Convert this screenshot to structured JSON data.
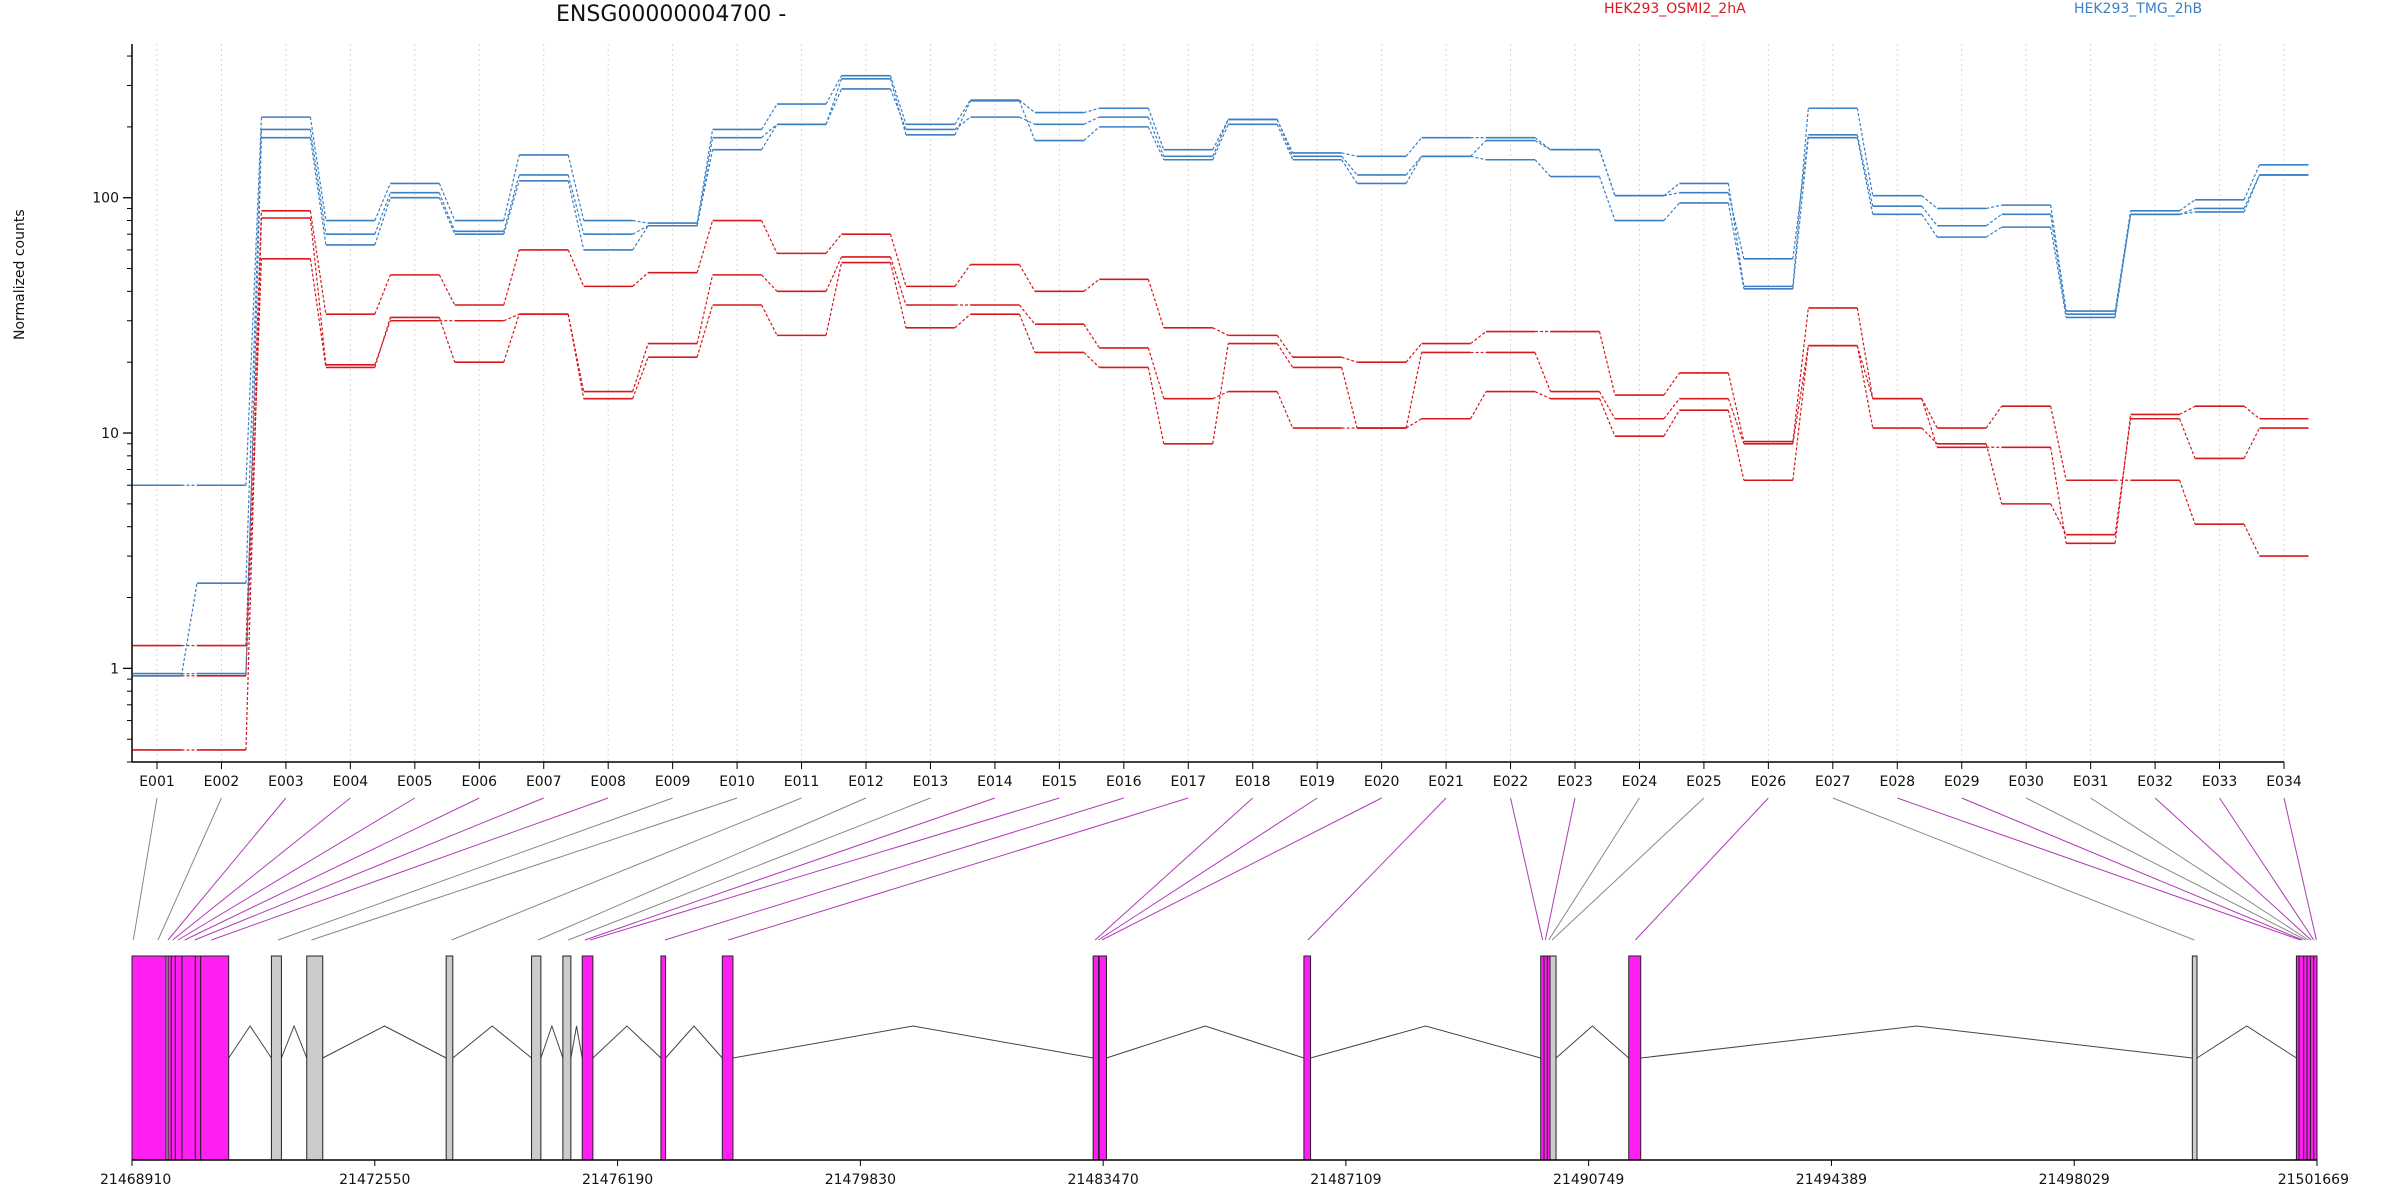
{
  "chart_data": {
    "type": "line",
    "title": "ENSG00000004700 -",
    "ylabel": "Normalized counts",
    "yscale": "log",
    "ylim": [
      0.4,
      450
    ],
    "yticks": [
      1,
      10,
      100
    ],
    "ytick_labels": [
      "1",
      "10",
      "100"
    ],
    "grid": "vertical dotted lines at exon bins",
    "legend_position": "top",
    "colors": {
      "HEK293_OSMI2_2hA": "#d7191c",
      "HEK293_TMG_2hB": "#3b7fc4",
      "highlight": "#ff1ff3",
      "neutral": "#cccccc"
    },
    "categories": [
      "E001",
      "E002",
      "E003",
      "E004",
      "E005",
      "E006",
      "E007",
      "E008",
      "E009",
      "E010",
      "E011",
      "E012",
      "E013",
      "E014",
      "E015",
      "E016",
      "E017",
      "E018",
      "E019",
      "E020",
      "E021",
      "E022",
      "E023",
      "E024",
      "E025",
      "E026",
      "E027",
      "E028",
      "E029",
      "E030",
      "E031",
      "E032",
      "E033",
      "E034"
    ],
    "groups": [
      {
        "name": "HEK293_OSMI2_2hA",
        "color": "#d7191c"
      },
      {
        "name": "HEK293_TMG_2hB",
        "color": "#3b7fc4"
      }
    ],
    "series": [
      {
        "group": "HEK293_OSMI2_2hA",
        "values": [
          1.25,
          1.25,
          88,
          32,
          47,
          35,
          60,
          42,
          48,
          80,
          58,
          70,
          42,
          52,
          40,
          45,
          28,
          26,
          21,
          20,
          24,
          27,
          27,
          14.5,
          18,
          9.2,
          34,
          14,
          10.5,
          13,
          6.3,
          6.3,
          4.1,
          3
        ]
      },
      {
        "group": "HEK293_OSMI2_2hA",
        "values": [
          0.45,
          0.45,
          82,
          19.5,
          30,
          30,
          32,
          15,
          24,
          47,
          40,
          56,
          35,
          35,
          29,
          23,
          14,
          15,
          10.5,
          10.5,
          11.5,
          15,
          14,
          9.7,
          12.5,
          6.3,
          23.5,
          10.5,
          9,
          5,
          3.7,
          11.5,
          7.8,
          10.5
        ]
      },
      {
        "group": "HEK293_OSMI2_2hA",
        "values": [
          0.93,
          0.93,
          55,
          19,
          31,
          20,
          32,
          14,
          21,
          35,
          26,
          53,
          28,
          32,
          22,
          19,
          9,
          24,
          19,
          10.5,
          22,
          22,
          15,
          11.5,
          14,
          9,
          23.5,
          14,
          8.7,
          8.7,
          3.4,
          12,
          13,
          11.5
        ]
      },
      {
        "group": "HEK293_TMG_2hB",
        "values": [
          6,
          6,
          220,
          80,
          115,
          80,
          152,
          80,
          78,
          195,
          250,
          330,
          205,
          260,
          230,
          240,
          160,
          215,
          155,
          150,
          180,
          180,
          160,
          102,
          115,
          42,
          240,
          102,
          90,
          93,
          33,
          88,
          98,
          138
        ]
      },
      {
        "group": "HEK293_TMG_2hB",
        "values": [
          0.93,
          2.3,
          195,
          70,
          105,
          72,
          125,
          70,
          76,
          180,
          205,
          290,
          195,
          220,
          205,
          220,
          150,
          215,
          150,
          125,
          150,
          175,
          160,
          102,
          105,
          55,
          185,
          92,
          76,
          85,
          32,
          85,
          90,
          125
        ]
      },
      {
        "group": "HEK293_TMG_2hB",
        "values": [
          0.95,
          0.95,
          180,
          63,
          100,
          70,
          118,
          60,
          76,
          160,
          205,
          320,
          185,
          258,
          175,
          200,
          145,
          205,
          145,
          115,
          150,
          145,
          123,
          80,
          95,
          41,
          180,
          85,
          68,
          75,
          31,
          85,
          87,
          125
        ]
      }
    ],
    "gene_model": {
      "coordinate_labels": [
        "21468910",
        "21472550",
        "21476190",
        "21479830",
        "21483470",
        "21487109",
        "21490749",
        "21494389",
        "21498029",
        "21501669"
      ],
      "coord_ticks": [
        21468910,
        21472550,
        21476190,
        21479830,
        21483470,
        21487109,
        21490749,
        21494389,
        21498029,
        21501669
      ],
      "range": [
        21468910,
        21501669
      ],
      "exons": [
        {
          "id": "E001",
          "start": 21468910,
          "end": 21469420,
          "highlight": true
        },
        {
          "id": "E002",
          "start": 21469420,
          "end": 21469450,
          "highlight": false
        },
        {
          "id": "E003",
          "start": 21469450,
          "end": 21469500,
          "highlight": true
        },
        {
          "id": "E004",
          "start": 21469500,
          "end": 21469560,
          "highlight": true
        },
        {
          "id": "E005",
          "start": 21469560,
          "end": 21469660,
          "highlight": true
        },
        {
          "id": "E006",
          "start": 21469660,
          "end": 21469860,
          "highlight": true
        },
        {
          "id": "E007",
          "start": 21469860,
          "end": 21469940,
          "highlight": true
        },
        {
          "id": "E008",
          "start": 21469940,
          "end": 21470360,
          "highlight": true
        },
        {
          "id": "E009",
          "start": 21471000,
          "end": 21471150,
          "highlight": false
        },
        {
          "id": "E010",
          "start": 21471530,
          "end": 21471770,
          "highlight": false
        },
        {
          "id": "E011",
          "start": 21473620,
          "end": 21473720,
          "highlight": false
        },
        {
          "id": "E012",
          "start": 21474900,
          "end": 21475040,
          "highlight": false
        },
        {
          "id": "E013",
          "start": 21475370,
          "end": 21475490,
          "highlight": false
        },
        {
          "id": "E014",
          "start": 21475660,
          "end": 21475820,
          "highlight": true
        },
        {
          "id": "E015",
          "start": 21476840,
          "end": 21476910,
          "highlight": true
        },
        {
          "id": "E016",
          "start": 21477760,
          "end": 21477920,
          "highlight": true
        },
        {
          "id": "E017",
          "start": 21483320,
          "end": 21483400,
          "highlight": true
        },
        {
          "id": "E018",
          "start": 21483410,
          "end": 21483520,
          "highlight": true
        },
        {
          "id": "E019",
          "start": 21486480,
          "end": 21486580,
          "highlight": true
        },
        {
          "id": "E020",
          "start": 21490030,
          "end": 21490080,
          "highlight": true
        },
        {
          "id": "E021",
          "start": 21490080,
          "end": 21490130,
          "highlight": true
        },
        {
          "id": "E022",
          "start": 21490130,
          "end": 21490170,
          "highlight": true
        },
        {
          "id": "E023",
          "start": 21490170,
          "end": 21490260,
          "highlight": false
        },
        {
          "id": "E024",
          "start": 21491350,
          "end": 21491530,
          "highlight": true
        },
        {
          "id": "E025",
          "start": 21499800,
          "end": 21499870,
          "highlight": false
        },
        {
          "id": "E026",
          "start": 21501360,
          "end": 21501400,
          "highlight": true
        },
        {
          "id": "E027",
          "start": 21501400,
          "end": 21501470,
          "highlight": true
        },
        {
          "id": "E028",
          "start": 21501470,
          "end": 21501520,
          "highlight": true
        },
        {
          "id": "E029",
          "start": 21501520,
          "end": 21501570,
          "highlight": true
        },
        {
          "id": "E030",
          "start": 21501570,
          "end": 21501620,
          "highlight": true
        },
        {
          "id": "E031",
          "start": 21501620,
          "end": 21501669,
          "highlight": true
        }
      ],
      "bin_links": [
        {
          "bin": "E001",
          "x": 21468930,
          "highlight": false
        },
        {
          "bin": "E002",
          "x": 21469300,
          "highlight": false
        },
        {
          "bin": "E003",
          "x": 21469450,
          "highlight": true
        },
        {
          "bin": "E004",
          "x": 21469520,
          "highlight": true
        },
        {
          "bin": "E005",
          "x": 21469600,
          "highlight": true
        },
        {
          "bin": "E006",
          "x": 21469700,
          "highlight": true
        },
        {
          "bin": "E007",
          "x": 21469850,
          "highlight": true
        },
        {
          "bin": "E008",
          "x": 21470100,
          "highlight": true
        },
        {
          "bin": "E009",
          "x": 21471100,
          "highlight": false
        },
        {
          "bin": "E010",
          "x": 21471600,
          "highlight": false
        },
        {
          "bin": "E011",
          "x": 21473700,
          "highlight": false
        },
        {
          "bin": "E012",
          "x": 21475000,
          "highlight": false
        },
        {
          "bin": "E013",
          "x": 21475450,
          "highlight": false
        },
        {
          "bin": "E014",
          "x": 21475700,
          "highlight": true
        },
        {
          "bin": "E015",
          "x": 21475780,
          "highlight": true
        },
        {
          "bin": "E016",
          "x": 21476900,
          "highlight": true
        },
        {
          "bin": "E017",
          "x": 21477850,
          "highlight": true
        },
        {
          "bin": "E018",
          "x": 21483350,
          "highlight": true
        },
        {
          "bin": "E019",
          "x": 21483400,
          "highlight": true
        },
        {
          "bin": "E020",
          "x": 21483450,
          "highlight": true
        },
        {
          "bin": "E021",
          "x": 21486540,
          "highlight": true
        },
        {
          "bin": "E022",
          "x": 21490060,
          "highlight": true
        },
        {
          "bin": "E023",
          "x": 21490100,
          "highlight": true
        },
        {
          "bin": "E024",
          "x": 21490150,
          "highlight": false
        },
        {
          "bin": "E025",
          "x": 21490200,
          "highlight": false
        },
        {
          "bin": "E026",
          "x": 21491450,
          "highlight": true
        },
        {
          "bin": "E027",
          "x": 21499830,
          "highlight": false
        },
        {
          "bin": "E028",
          "x": 21501420,
          "highlight": true
        },
        {
          "bin": "E029",
          "x": 21501450,
          "highlight": true
        },
        {
          "bin": "E030",
          "x": 21501500,
          "highlight": false
        },
        {
          "bin": "E031",
          "x": 21501540,
          "highlight": false
        },
        {
          "bin": "E032",
          "x": 21501580,
          "highlight": true
        },
        {
          "bin": "E033",
          "x": 21501620,
          "highlight": true
        },
        {
          "bin": "E034",
          "x": 21501660,
          "highlight": true
        }
      ]
    }
  }
}
